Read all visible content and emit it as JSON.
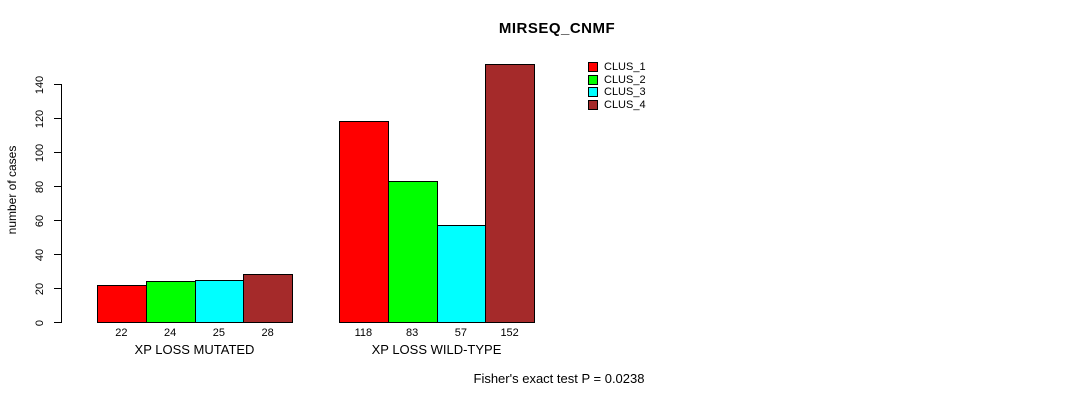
{
  "chart_data": {
    "type": "bar",
    "title": "MIRSEQ_CNMF",
    "ylabel": "number of cases",
    "xlabel": "",
    "categories": [
      "XP LOSS MUTATED",
      "XP LOSS WILD-TYPE"
    ],
    "series": [
      {
        "name": "CLUS_1",
        "color": "#ff0000",
        "values": [
          22,
          118
        ]
      },
      {
        "name": "CLUS_2",
        "color": "#00ff00",
        "values": [
          24,
          83
        ]
      },
      {
        "name": "CLUS_3",
        "color": "#00ffff",
        "values": [
          25,
          57
        ]
      },
      {
        "name": "CLUS_4",
        "color": "#a52a2a",
        "values": [
          28,
          152
        ]
      }
    ],
    "bar_value_labels": [
      [
        "22",
        "24",
        "25",
        "28"
      ],
      [
        "118",
        "83",
        "57",
        "152"
      ]
    ],
    "yticks": [
      0,
      20,
      40,
      60,
      80,
      100,
      120,
      140
    ],
    "ylim": [
      0,
      152
    ],
    "grid": false,
    "legend_position": "top-right",
    "legend_border": false,
    "annotation": "Fisher's exact test P = 0.0238",
    "colors": {
      "background": "#ffffff",
      "axis": "#000000",
      "text": "#000000",
      "bar_border": "#000000"
    }
  }
}
